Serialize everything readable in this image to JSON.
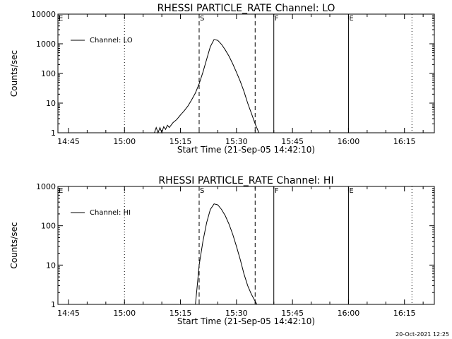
{
  "chart_data": [
    {
      "type": "line",
      "title": "RHESSI PARTICLE_RATE Channel: LO",
      "xlabel": "Start Time (21-Sep-05 14:42:10)",
      "ylabel": "Counts/sec",
      "yscale": "log",
      "ylim": [
        1,
        10000
      ],
      "xlim": [
        "14:42:10",
        "16:23:00"
      ],
      "x_ticks": [
        "14:45",
        "15:00",
        "15:15",
        "15:30",
        "15:45",
        "16:00",
        "16:15"
      ],
      "y_ticks": [
        "1",
        "10",
        "100",
        "1000",
        "10000"
      ],
      "legend": "top-left",
      "series": [
        {
          "name": "Channel: LO",
          "x": [
            "15:08",
            "15:08:30",
            "15:09",
            "15:09:30",
            "15:10",
            "15:10:30",
            "15:11",
            "15:11:30",
            "15:12",
            "15:13",
            "15:14",
            "15:15",
            "15:16",
            "15:17",
            "15:18",
            "15:19",
            "15:20",
            "15:21",
            "15:22",
            "15:23",
            "15:24",
            "15:25",
            "15:26",
            "15:27",
            "15:28",
            "15:29",
            "15:30",
            "15:31",
            "15:32",
            "15:33",
            "15:34",
            "15:35",
            "15:36"
          ],
          "values": [
            1,
            1.5,
            1,
            1.5,
            1,
            1.6,
            1.3,
            1.8,
            1.5,
            2.2,
            2.8,
            4,
            5.5,
            8,
            13,
            22,
            45,
            110,
            300,
            800,
            1400,
            1300,
            950,
            620,
            380,
            210,
            110,
            55,
            25,
            10,
            4.5,
            2,
            1
          ]
        }
      ],
      "vlines": [
        {
          "time": "15:00",
          "style": "dotted"
        },
        {
          "time": "15:20",
          "style": "dashed",
          "label": "S"
        },
        {
          "time": "15:35",
          "style": "dashed"
        },
        {
          "time": "15:40",
          "style": "solid",
          "label": "F"
        },
        {
          "time": "16:00",
          "style": "solid",
          "label": "E"
        },
        {
          "time": "16:17",
          "style": "dotted"
        }
      ],
      "edge_marker": "E"
    },
    {
      "type": "line",
      "title": "RHESSI PARTICLE_RATE Channel: HI",
      "xlabel": "Start Time (21-Sep-05 14:42:10)",
      "ylabel": "Counts/sec",
      "yscale": "log",
      "ylim": [
        1,
        1000
      ],
      "xlim": [
        "14:42:10",
        "16:23:00"
      ],
      "x_ticks": [
        "14:45",
        "15:00",
        "15:15",
        "15:30",
        "15:45",
        "16:00",
        "16:15"
      ],
      "y_ticks": [
        "1",
        "10",
        "100",
        "1000"
      ],
      "legend": "top-left",
      "series": [
        {
          "name": "Channel: HI",
          "x": [
            "15:19",
            "15:19:30",
            "15:20",
            "15:21",
            "15:22",
            "15:23",
            "15:24",
            "15:25",
            "15:26",
            "15:27",
            "15:28",
            "15:29",
            "15:30",
            "15:31",
            "15:32",
            "15:33",
            "15:34",
            "15:35",
            "15:35:30"
          ],
          "values": [
            1,
            3,
            10,
            40,
            120,
            260,
            360,
            340,
            260,
            180,
            110,
            60,
            30,
            14,
            6,
            3,
            1.8,
            1.2,
            1
          ]
        }
      ],
      "vlines": [
        {
          "time": "15:00",
          "style": "dotted"
        },
        {
          "time": "15:20",
          "style": "dashed",
          "label": "S"
        },
        {
          "time": "15:35",
          "style": "dashed"
        },
        {
          "time": "15:40",
          "style": "solid",
          "label": "F"
        },
        {
          "time": "16:00",
          "style": "solid",
          "label": "E"
        },
        {
          "time": "16:17",
          "style": "dotted"
        }
      ],
      "edge_marker": "E"
    }
  ],
  "footer": {
    "timestamp": "20-Oct-2021 12:25"
  }
}
